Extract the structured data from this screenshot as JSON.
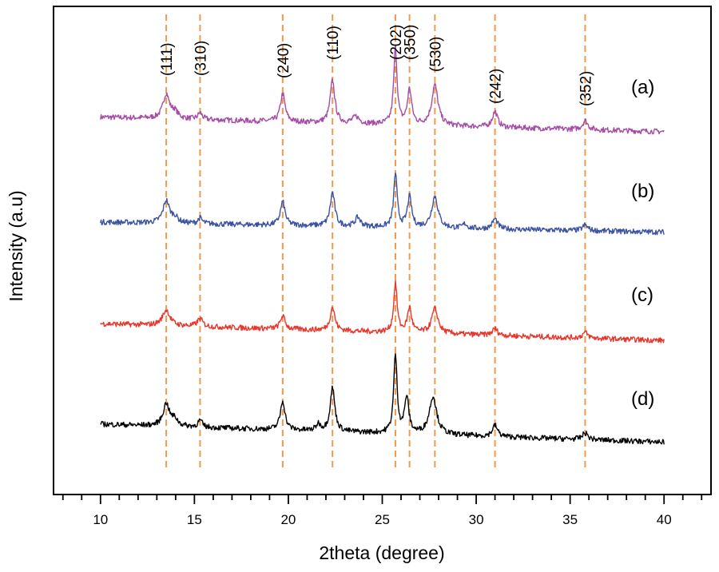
{
  "chart_data": {
    "type": "line",
    "title": "",
    "xlabel": "2theta (degree)",
    "ylabel": "Intensity (a.u)",
    "xlim": [
      7.5,
      42.5
    ],
    "xticks": [
      10,
      15,
      20,
      25,
      30,
      35,
      40
    ],
    "xtick_labels": [
      "10",
      "15",
      "20",
      "25",
      "30",
      "35",
      "40"
    ],
    "y_ticks_shown": false,
    "x_range": [
      10,
      40
    ],
    "peaks": [
      {
        "label": "(111)",
        "x": 13.5
      },
      {
        "label": "(310)",
        "x": 15.3
      },
      {
        "label": "(240)",
        "x": 19.7
      },
      {
        "label": "(110)",
        "x": 22.35
      },
      {
        "label": "(202)",
        "x": 25.7
      },
      {
        "label": "(350)",
        "x": 26.45
      },
      {
        "label": "(530)",
        "x": 27.8
      },
      {
        "label": "(242)",
        "x": 31.0
      },
      {
        "label": "(352)",
        "x": 35.8
      }
    ],
    "series": [
      {
        "name": "(a)",
        "color": "#a64ca6",
        "offset": 3,
        "baseline_start": 0.3,
        "baseline_end": -0.35,
        "peaks": [
          {
            "x": 13.5,
            "h": 1.1,
            "w": 0.3
          },
          {
            "x": 13.95,
            "h": 0.3,
            "w": 0.3
          },
          {
            "x": 15.3,
            "h": 0.3,
            "w": 0.2
          },
          {
            "x": 19.7,
            "h": 1.25,
            "w": 0.22
          },
          {
            "x": 22.35,
            "h": 1.9,
            "w": 0.22
          },
          {
            "x": 23.6,
            "h": 0.3,
            "w": 0.3
          },
          {
            "x": 25.7,
            "h": 3.4,
            "w": 0.16
          },
          {
            "x": 26.45,
            "h": 1.55,
            "w": 0.2
          },
          {
            "x": 27.8,
            "h": 1.8,
            "w": 0.3
          },
          {
            "x": 31.0,
            "h": 0.7,
            "w": 0.25
          },
          {
            "x": 35.8,
            "h": 0.4,
            "w": 0.25
          }
        ]
      },
      {
        "name": "(b)",
        "color": "#3c53a4",
        "offset": 2,
        "baseline_start": 0.25,
        "baseline_end": -0.2,
        "peaks": [
          {
            "x": 13.5,
            "h": 1.0,
            "w": 0.3
          },
          {
            "x": 13.95,
            "h": 0.25,
            "w": 0.3
          },
          {
            "x": 15.3,
            "h": 0.25,
            "w": 0.2
          },
          {
            "x": 19.7,
            "h": 1.05,
            "w": 0.22
          },
          {
            "x": 22.35,
            "h": 1.5,
            "w": 0.22
          },
          {
            "x": 23.7,
            "h": 0.4,
            "w": 0.25
          },
          {
            "x": 25.7,
            "h": 2.4,
            "w": 0.16
          },
          {
            "x": 26.45,
            "h": 1.35,
            "w": 0.2
          },
          {
            "x": 27.8,
            "h": 1.4,
            "w": 0.3
          },
          {
            "x": 29.4,
            "h": 0.2,
            "w": 0.2
          },
          {
            "x": 31.0,
            "h": 0.45,
            "w": 0.25
          },
          {
            "x": 35.8,
            "h": 0.25,
            "w": 0.25
          }
        ]
      },
      {
        "name": "(c)",
        "color": "#e8362b",
        "offset": 1,
        "baseline_start": 0.35,
        "baseline_end": -0.4,
        "peaks": [
          {
            "x": 13.5,
            "h": 0.7,
            "w": 0.35
          },
          {
            "x": 15.3,
            "h": 0.35,
            "w": 0.25
          },
          {
            "x": 19.7,
            "h": 0.6,
            "w": 0.22
          },
          {
            "x": 22.35,
            "h": 1.05,
            "w": 0.22
          },
          {
            "x": 25.7,
            "h": 2.2,
            "w": 0.16
          },
          {
            "x": 26.45,
            "h": 1.1,
            "w": 0.2
          },
          {
            "x": 27.8,
            "h": 1.1,
            "w": 0.3
          },
          {
            "x": 31.0,
            "h": 0.3,
            "w": 0.25
          },
          {
            "x": 35.8,
            "h": 0.25,
            "w": 0.25
          }
        ]
      },
      {
        "name": "(d)",
        "color": "#000000",
        "offset": 0,
        "baseline_start": 0.5,
        "baseline_end": -0.3,
        "peaks": [
          {
            "x": 13.5,
            "h": 1.0,
            "w": 0.3
          },
          {
            "x": 13.95,
            "h": 0.3,
            "w": 0.3
          },
          {
            "x": 15.3,
            "h": 0.3,
            "w": 0.2
          },
          {
            "x": 19.7,
            "h": 1.3,
            "w": 0.22
          },
          {
            "x": 22.35,
            "h": 1.95,
            "w": 0.22
          },
          {
            "x": 21.6,
            "h": 0.3,
            "w": 0.2
          },
          {
            "x": 25.7,
            "h": 3.5,
            "w": 0.16
          },
          {
            "x": 26.3,
            "h": 1.6,
            "w": 0.2
          },
          {
            "x": 27.7,
            "h": 1.7,
            "w": 0.35
          },
          {
            "x": 31.0,
            "h": 0.5,
            "w": 0.25
          },
          {
            "x": 35.8,
            "h": 0.3,
            "w": 0.25
          }
        ]
      }
    ],
    "noise_amplitude": 0.12
  }
}
